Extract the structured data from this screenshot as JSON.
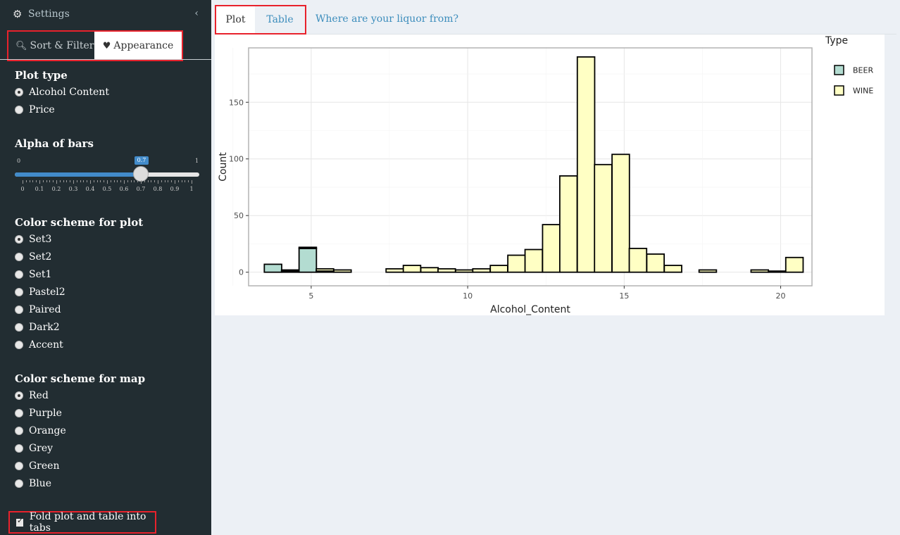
{
  "sidebar": {
    "header_title": "Settings",
    "tab_sort": "Sort & Filter",
    "tab_appearance": "Appearance",
    "plot_type_title": "Plot type",
    "plot_type_options": [
      "Alcohol Content",
      "Price"
    ],
    "plot_type_selected": "Alcohol Content",
    "alpha_title": "Alpha of bars",
    "alpha_min": "0",
    "alpha_max": "1",
    "alpha_value": "0.7",
    "alpha_ticks": [
      "0",
      "0.1",
      "0.2",
      "0.3",
      "0.4",
      "0.5",
      "0.6",
      "0.7",
      "0.8",
      "0.9",
      "1"
    ],
    "color_plot_title": "Color scheme for plot",
    "color_plot_options": [
      "Set3",
      "Set2",
      "Set1",
      "Pastel2",
      "Paired",
      "Dark2",
      "Accent"
    ],
    "color_plot_selected": "Set3",
    "color_map_title": "Color scheme for map",
    "color_map_options": [
      "Red",
      "Purple",
      "Orange",
      "Grey",
      "Green",
      "Blue"
    ],
    "color_map_selected": "Red",
    "fold_label": "Fold plot and table into tabs",
    "fold_checked": true
  },
  "main": {
    "tab_plot": "Plot",
    "tab_table": "Table",
    "tab_link": "Where are your liquor from?"
  },
  "chart_data": {
    "type": "bar",
    "xlabel": "Alcohol_Content",
    "ylabel": "Count",
    "xlim": [
      3,
      21
    ],
    "ylim": [
      -12,
      198
    ],
    "xticks": [
      5,
      10,
      15,
      20
    ],
    "yticks": [
      0,
      50,
      100,
      150
    ],
    "grid": true,
    "legend_title": "Type",
    "legend_position": "right",
    "bin_width": 0.555,
    "series": [
      {
        "name": "BEER",
        "color": "#b3dcd1",
        "bars": [
          {
            "x": 3.78,
            "count": 7
          },
          {
            "x": 4.33,
            "count": 1
          },
          {
            "x": 4.89,
            "count": 21
          },
          {
            "x": 5.44,
            "count": 1
          }
        ]
      },
      {
        "name": "WINE",
        "color": "#ffffc4",
        "bars": [
          {
            "x": 4.33,
            "count": 1
          },
          {
            "x": 4.89,
            "count": 1
          },
          {
            "x": 5.44,
            "count": 2
          },
          {
            "x": 6.0,
            "count": 2
          },
          {
            "x": 7.67,
            "count": 3
          },
          {
            "x": 8.22,
            "count": 6
          },
          {
            "x": 8.78,
            "count": 4
          },
          {
            "x": 9.33,
            "count": 3
          },
          {
            "x": 9.89,
            "count": 2
          },
          {
            "x": 10.44,
            "count": 3
          },
          {
            "x": 11.0,
            "count": 6
          },
          {
            "x": 11.56,
            "count": 15
          },
          {
            "x": 12.11,
            "count": 20
          },
          {
            "x": 12.67,
            "count": 42
          },
          {
            "x": 13.22,
            "count": 85
          },
          {
            "x": 13.78,
            "count": 190
          },
          {
            "x": 14.33,
            "count": 95
          },
          {
            "x": 14.89,
            "count": 104
          },
          {
            "x": 15.44,
            "count": 21
          },
          {
            "x": 16.0,
            "count": 16
          },
          {
            "x": 16.56,
            "count": 6
          },
          {
            "x": 17.67,
            "count": 2
          },
          {
            "x": 19.33,
            "count": 2
          },
          {
            "x": 19.89,
            "count": 1
          },
          {
            "x": 20.44,
            "count": 13
          }
        ]
      }
    ]
  }
}
